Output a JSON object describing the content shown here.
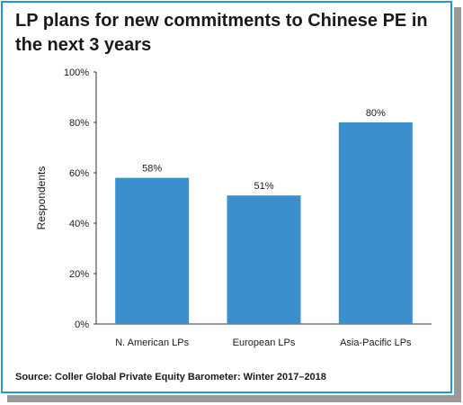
{
  "title": "LP plans for new commitments to Chinese PE in the next 3 years",
  "source": "Source: Coller Global Private Equity Barometer: Winter 2017–2018",
  "colors": {
    "bar": "#3b8fcd",
    "frame": "#1e9ad6"
  },
  "chart_data": {
    "type": "bar",
    "categories": [
      "N. American LPs",
      "European LPs",
      "Asia-Pacific LPs"
    ],
    "values": [
      58,
      51,
      80
    ],
    "data_labels": [
      "58%",
      "51%",
      "80%"
    ],
    "ylabel": "Respondents",
    "ylim": [
      0,
      100
    ],
    "yticks": [
      0,
      20,
      40,
      60,
      80,
      100
    ],
    "ytick_labels": [
      "0%",
      "20%",
      "40%",
      "60%",
      "80%",
      "100%"
    ],
    "grid": false,
    "legend": "none"
  }
}
